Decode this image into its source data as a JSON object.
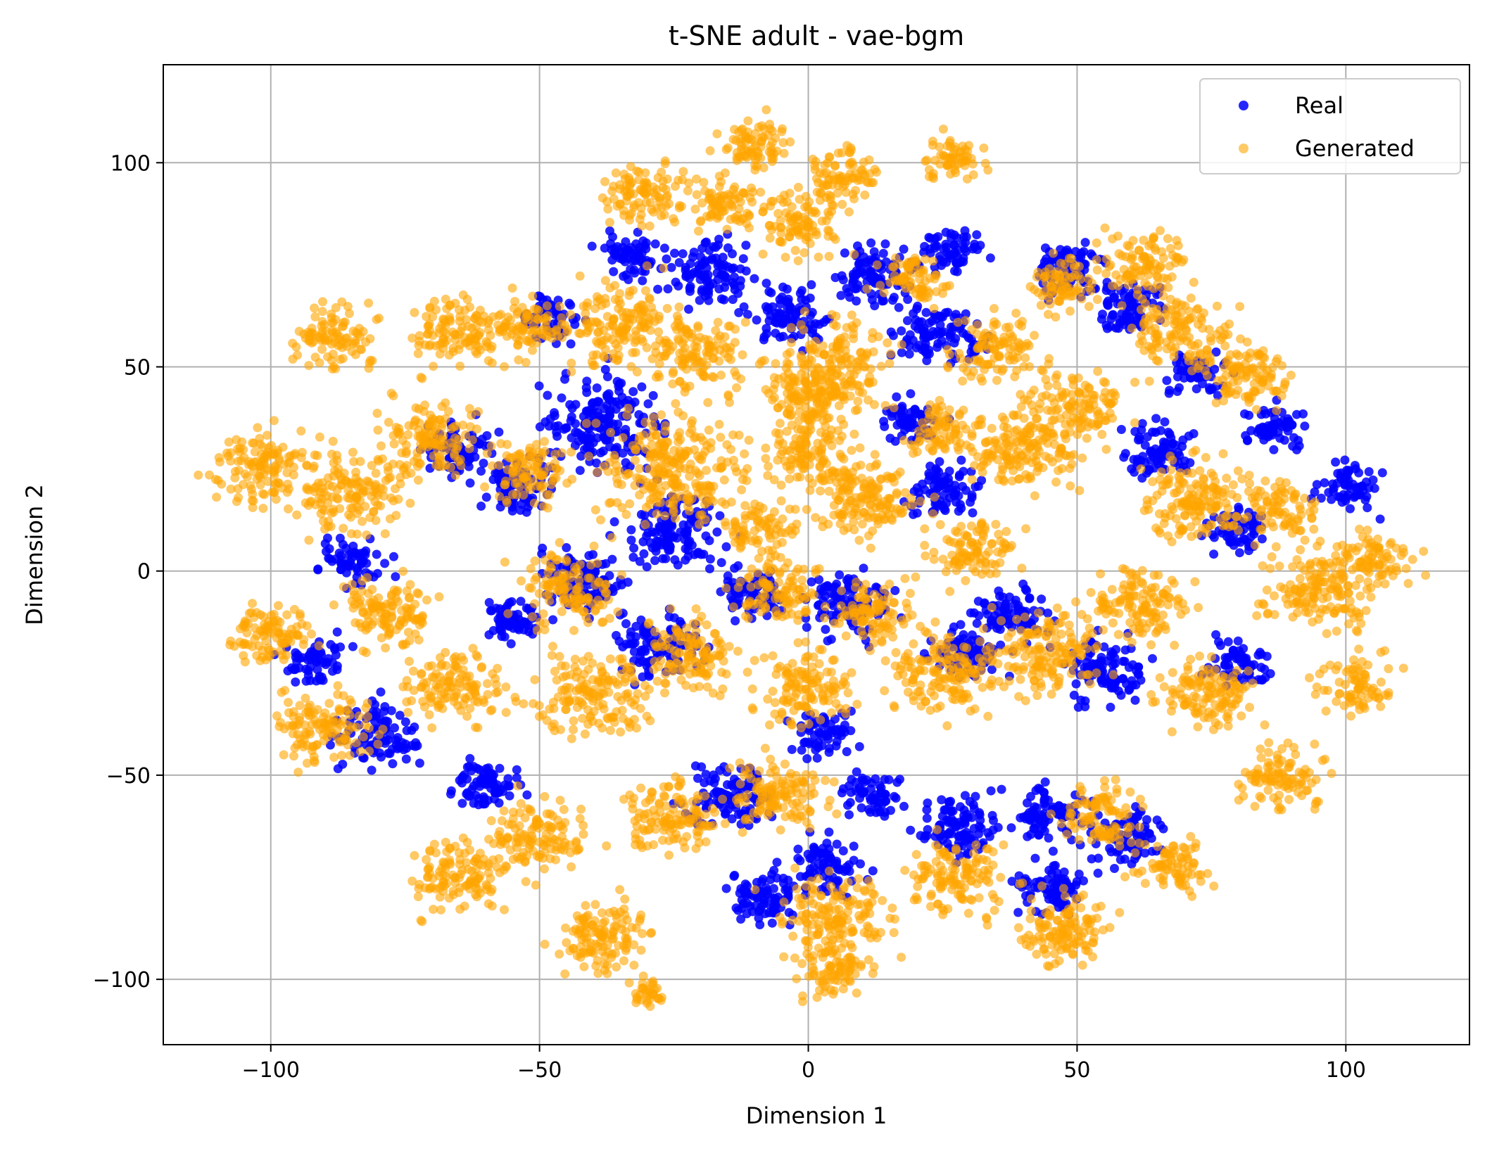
{
  "chart_data": {
    "type": "scatter",
    "title": "t-SNE adult - vae-bgm",
    "xlabel": "Dimension 1",
    "ylabel": "Dimension 2",
    "xlim": [
      -120,
      123
    ],
    "ylim": [
      -116,
      124
    ],
    "xticks": [
      -100,
      -50,
      0,
      50,
      100
    ],
    "yticks": [
      -100,
      -50,
      0,
      50,
      100
    ],
    "xtick_labels": [
      "−100",
      "−50",
      "0",
      "50",
      "100"
    ],
    "ytick_labels": [
      "−100",
      "−50",
      "0",
      "50",
      "100"
    ],
    "grid": true,
    "legend_position": "top-right",
    "series": [
      {
        "name": "Real",
        "color": "#0000ff",
        "alpha": 0.85,
        "clusters": [
          {
            "x": -33,
            "y": 77,
            "r": 5
          },
          {
            "x": -18,
            "y": 73,
            "r": 7
          },
          {
            "x": -3,
            "y": 62,
            "r": 6
          },
          {
            "x": 12,
            "y": 72,
            "r": 7
          },
          {
            "x": 27,
            "y": 78,
            "r": 5
          },
          {
            "x": 48,
            "y": 74,
            "r": 6
          },
          {
            "x": 25,
            "y": 58,
            "r": 7
          },
          {
            "x": 60,
            "y": 64,
            "r": 6
          },
          {
            "x": 72,
            "y": 49,
            "r": 5
          },
          {
            "x": -38,
            "y": 36,
            "r": 10
          },
          {
            "x": -55,
            "y": 20,
            "r": 6
          },
          {
            "x": -25,
            "y": 10,
            "r": 8
          },
          {
            "x": -42,
            "y": -2,
            "r": 7
          },
          {
            "x": -55,
            "y": -12,
            "r": 5
          },
          {
            "x": 25,
            "y": 20,
            "r": 6
          },
          {
            "x": 19,
            "y": 37,
            "r": 5
          },
          {
            "x": 65,
            "y": 30,
            "r": 6
          },
          {
            "x": 87,
            "y": 35,
            "r": 5
          },
          {
            "x": 100,
            "y": 21,
            "r": 5
          },
          {
            "x": -85,
            "y": 2,
            "r": 5
          },
          {
            "x": -80,
            "y": -40,
            "r": 7
          },
          {
            "x": -92,
            "y": -22,
            "r": 5
          },
          {
            "x": -60,
            "y": -52,
            "r": 6
          },
          {
            "x": -28,
            "y": -18,
            "r": 7
          },
          {
            "x": -10,
            "y": -5,
            "r": 6
          },
          {
            "x": 8,
            "y": -8,
            "r": 7
          },
          {
            "x": 38,
            "y": -10,
            "r": 6
          },
          {
            "x": 55,
            "y": -25,
            "r": 7
          },
          {
            "x": 80,
            "y": -22,
            "r": 5
          },
          {
            "x": -15,
            "y": -55,
            "r": 7
          },
          {
            "x": -8,
            "y": -80,
            "r": 6
          },
          {
            "x": 3,
            "y": -72,
            "r": 6
          },
          {
            "x": 12,
            "y": -55,
            "r": 5
          },
          {
            "x": 28,
            "y": -62,
            "r": 7
          },
          {
            "x": 45,
            "y": -60,
            "r": 6
          },
          {
            "x": 45,
            "y": -78,
            "r": 6
          },
          {
            "x": 60,
            "y": -65,
            "r": 6
          },
          {
            "x": 3,
            "y": -40,
            "r": 5
          },
          {
            "x": -65,
            "y": 30,
            "r": 6
          },
          {
            "x": -48,
            "y": 62,
            "r": 5
          },
          {
            "x": 80,
            "y": 10,
            "r": 5
          },
          {
            "x": 30,
            "y": -20,
            "r": 6
          }
        ]
      },
      {
        "name": "Generated",
        "color": "#ffa500",
        "alpha": 0.6,
        "clusters": [
          {
            "x": -88,
            "y": 58,
            "r": 7
          },
          {
            "x": -65,
            "y": 58,
            "r": 8
          },
          {
            "x": -52,
            "y": 60,
            "r": 6
          },
          {
            "x": -30,
            "y": 92,
            "r": 7
          },
          {
            "x": -10,
            "y": 104,
            "r": 6
          },
          {
            "x": 7,
            "y": 97,
            "r": 6
          },
          {
            "x": 27,
            "y": 101,
            "r": 5
          },
          {
            "x": -15,
            "y": 90,
            "r": 6
          },
          {
            "x": -1,
            "y": 85,
            "r": 7
          },
          {
            "x": -35,
            "y": 60,
            "r": 9
          },
          {
            "x": -20,
            "y": 53,
            "r": 8
          },
          {
            "x": 5,
            "y": 50,
            "r": 10
          },
          {
            "x": 20,
            "y": 72,
            "r": 6
          },
          {
            "x": 35,
            "y": 55,
            "r": 7
          },
          {
            "x": 47,
            "y": 70,
            "r": 6
          },
          {
            "x": 62,
            "y": 75,
            "r": 7
          },
          {
            "x": 70,
            "y": 58,
            "r": 8
          },
          {
            "x": 82,
            "y": 48,
            "r": 7
          },
          {
            "x": 50,
            "y": 40,
            "r": 8
          },
          {
            "x": 40,
            "y": 30,
            "r": 9
          },
          {
            "x": -102,
            "y": 25,
            "r": 8
          },
          {
            "x": -85,
            "y": 20,
            "r": 9
          },
          {
            "x": -70,
            "y": 33,
            "r": 8
          },
          {
            "x": -52,
            "y": 25,
            "r": 7
          },
          {
            "x": -25,
            "y": 25,
            "r": 12
          },
          {
            "x": 0,
            "y": 30,
            "r": 8
          },
          {
            "x": 10,
            "y": 18,
            "r": 9
          },
          {
            "x": 25,
            "y": 35,
            "r": 6
          },
          {
            "x": 72,
            "y": 18,
            "r": 9
          },
          {
            "x": 95,
            "y": -5,
            "r": 9
          },
          {
            "x": 105,
            "y": 3,
            "r": 6
          },
          {
            "x": 102,
            "y": -28,
            "r": 6
          },
          {
            "x": -100,
            "y": -15,
            "r": 7
          },
          {
            "x": -90,
            "y": -38,
            "r": 8
          },
          {
            "x": -78,
            "y": -10,
            "r": 8
          },
          {
            "x": -65,
            "y": -28,
            "r": 8
          },
          {
            "x": -45,
            "y": -5,
            "r": 8
          },
          {
            "x": -40,
            "y": -30,
            "r": 9
          },
          {
            "x": -22,
            "y": -20,
            "r": 8
          },
          {
            "x": -5,
            "y": -5,
            "r": 7
          },
          {
            "x": 12,
            "y": -10,
            "r": 7
          },
          {
            "x": 25,
            "y": -25,
            "r": 9
          },
          {
            "x": 45,
            "y": -20,
            "r": 9
          },
          {
            "x": 62,
            "y": -8,
            "r": 8
          },
          {
            "x": 75,
            "y": -30,
            "r": 8
          },
          {
            "x": 88,
            "y": -50,
            "r": 7
          },
          {
            "x": -65,
            "y": -75,
            "r": 8
          },
          {
            "x": -50,
            "y": -65,
            "r": 8
          },
          {
            "x": -38,
            "y": -90,
            "r": 8
          },
          {
            "x": -25,
            "y": -60,
            "r": 8
          },
          {
            "x": -5,
            "y": -55,
            "r": 8
          },
          {
            "x": 5,
            "y": -85,
            "r": 9
          },
          {
            "x": 5,
            "y": -98,
            "r": 6
          },
          {
            "x": 28,
            "y": -75,
            "r": 8
          },
          {
            "x": 48,
            "y": -88,
            "r": 8
          },
          {
            "x": 55,
            "y": -60,
            "r": 7
          },
          {
            "x": 68,
            "y": -72,
            "r": 6
          },
          {
            "x": 0,
            "y": -28,
            "r": 8
          },
          {
            "x": 30,
            "y": 5,
            "r": 7
          },
          {
            "x": -8,
            "y": 10,
            "r": 6
          },
          {
            "x": 88,
            "y": 15,
            "r": 6
          },
          {
            "x": -30,
            "y": -103,
            "r": 3
          },
          {
            "x": 0,
            "y": 42,
            "r": 6
          }
        ]
      }
    ]
  }
}
